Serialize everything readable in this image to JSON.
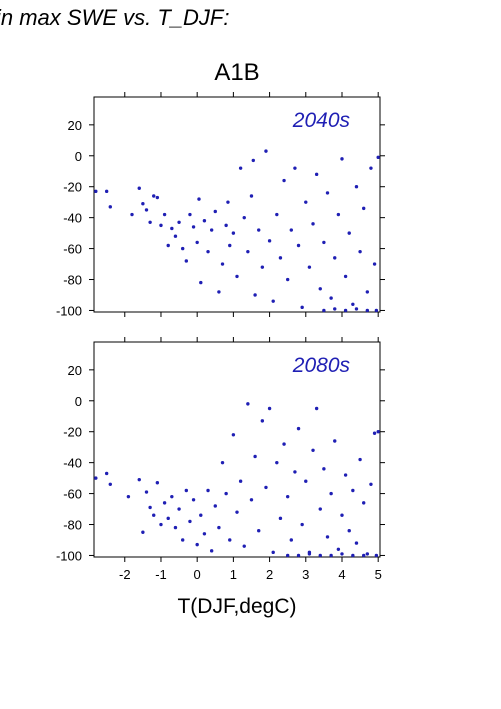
{
  "figure": {
    "heading": "in max SWE vs. T_DJF:",
    "scenario": "A1B",
    "xlabel": "T(DJF,degC)",
    "marker_color": "#1f1fb4"
  },
  "chart_data": [
    {
      "type": "scatter",
      "label": "2040s",
      "xlim": [
        -2.85,
        5.05
      ],
      "ylim": [
        -101,
        38
      ],
      "yticks": [
        20,
        0,
        -20,
        -40,
        -60,
        -80,
        -100
      ],
      "xticks": [
        -2,
        -1,
        0,
        1,
        2,
        3,
        4,
        5
      ],
      "grid": false,
      "points": [
        [
          -2.8,
          -23
        ],
        [
          -2.5,
          -23
        ],
        [
          -2.4,
          -33
        ],
        [
          -1.8,
          -38
        ],
        [
          -1.6,
          -21
        ],
        [
          -1.5,
          -31
        ],
        [
          -1.4,
          -35
        ],
        [
          -1.3,
          -43
        ],
        [
          -1.2,
          -26
        ],
        [
          -1.1,
          -27
        ],
        [
          -1.0,
          -45
        ],
        [
          -0.9,
          -38
        ],
        [
          -0.8,
          -58
        ],
        [
          -0.7,
          -47
        ],
        [
          -0.6,
          -52
        ],
        [
          -0.5,
          -43
        ],
        [
          -0.4,
          -60
        ],
        [
          -0.3,
          -68
        ],
        [
          -0.2,
          -38
        ],
        [
          -0.1,
          -46
        ],
        [
          0.0,
          -56
        ],
        [
          0.05,
          -28
        ],
        [
          0.1,
          -82
        ],
        [
          0.2,
          -42
        ],
        [
          0.3,
          -62
        ],
        [
          0.4,
          -48
        ],
        [
          0.5,
          -36
        ],
        [
          0.6,
          -88
        ],
        [
          0.7,
          -70
        ],
        [
          0.8,
          -45
        ],
        [
          0.85,
          -30
        ],
        [
          0.9,
          -58
        ],
        [
          1.0,
          -50
        ],
        [
          1.1,
          -78
        ],
        [
          1.2,
          -8
        ],
        [
          1.3,
          -40
        ],
        [
          1.4,
          -62
        ],
        [
          1.5,
          -26
        ],
        [
          1.55,
          -3
        ],
        [
          1.6,
          -90
        ],
        [
          1.7,
          -48
        ],
        [
          1.8,
          -72
        ],
        [
          1.9,
          3
        ],
        [
          2.0,
          -55
        ],
        [
          2.1,
          -94
        ],
        [
          2.2,
          -38
        ],
        [
          2.3,
          -66
        ],
        [
          2.4,
          -16
        ],
        [
          2.5,
          -80
        ],
        [
          2.6,
          -48
        ],
        [
          2.7,
          -8
        ],
        [
          2.8,
          -58
        ],
        [
          2.9,
          -98
        ],
        [
          3.0,
          -30
        ],
        [
          3.1,
          -72
        ],
        [
          3.2,
          -44
        ],
        [
          3.3,
          -12
        ],
        [
          3.4,
          -86
        ],
        [
          3.5,
          -56
        ],
        [
          3.6,
          -24
        ],
        [
          3.7,
          -92
        ],
        [
          3.8,
          -66
        ],
        [
          3.9,
          -38
        ],
        [
          4.0,
          -2
        ],
        [
          4.1,
          -78
        ],
        [
          4.2,
          -50
        ],
        [
          4.3,
          -96
        ],
        [
          4.4,
          -20
        ],
        [
          4.5,
          -62
        ],
        [
          4.6,
          -34
        ],
        [
          4.7,
          -88
        ],
        [
          4.8,
          -8
        ],
        [
          4.9,
          -70
        ],
        [
          5.0,
          -1
        ],
        [
          4.95,
          -100
        ],
        [
          4.7,
          -100
        ],
        [
          4.4,
          -99
        ],
        [
          4.1,
          -100
        ],
        [
          3.8,
          -99
        ],
        [
          3.5,
          -100
        ]
      ]
    },
    {
      "type": "scatter",
      "label": "2080s",
      "xlim": [
        -2.85,
        5.05
      ],
      "ylim": [
        -101,
        38
      ],
      "yticks": [
        20,
        0,
        -20,
        -40,
        -60,
        -80,
        -100
      ],
      "xticks": [
        -2,
        -1,
        0,
        1,
        2,
        3,
        4,
        5
      ],
      "grid": false,
      "points": [
        [
          -2.8,
          -50
        ],
        [
          -2.5,
          -47
        ],
        [
          -2.4,
          -54
        ],
        [
          -1.9,
          -62
        ],
        [
          -1.6,
          -51
        ],
        [
          -1.5,
          -85
        ],
        [
          -1.4,
          -59
        ],
        [
          -1.3,
          -69
        ],
        [
          -1.2,
          -74
        ],
        [
          -1.1,
          -53
        ],
        [
          -1.0,
          -80
        ],
        [
          -0.9,
          -66
        ],
        [
          -0.8,
          -76
        ],
        [
          -0.7,
          -62
        ],
        [
          -0.6,
          -82
        ],
        [
          -0.5,
          -70
        ],
        [
          -0.4,
          -90
        ],
        [
          -0.3,
          -58
        ],
        [
          -0.2,
          -78
        ],
        [
          -0.1,
          -64
        ],
        [
          0.0,
          -93
        ],
        [
          0.1,
          -74
        ],
        [
          0.2,
          -86
        ],
        [
          0.3,
          -58
        ],
        [
          0.4,
          -97
        ],
        [
          0.5,
          -68
        ],
        [
          0.6,
          -82
        ],
        [
          0.7,
          -40
        ],
        [
          0.8,
          -60
        ],
        [
          0.9,
          -90
        ],
        [
          1.0,
          -22
        ],
        [
          1.1,
          -72
        ],
        [
          1.2,
          -52
        ],
        [
          1.3,
          -94
        ],
        [
          1.4,
          -2
        ],
        [
          1.5,
          -64
        ],
        [
          1.6,
          -36
        ],
        [
          1.7,
          -84
        ],
        [
          1.8,
          -13
        ],
        [
          1.9,
          -56
        ],
        [
          2.0,
          -5
        ],
        [
          2.1,
          -98
        ],
        [
          2.2,
          -40
        ],
        [
          2.3,
          -76
        ],
        [
          2.4,
          -28
        ],
        [
          2.5,
          -62
        ],
        [
          2.6,
          -90
        ],
        [
          2.7,
          -46
        ],
        [
          2.8,
          -18
        ],
        [
          2.9,
          -80
        ],
        [
          3.0,
          -52
        ],
        [
          3.1,
          -98
        ],
        [
          3.2,
          -32
        ],
        [
          3.3,
          -5
        ],
        [
          3.4,
          -70
        ],
        [
          3.5,
          -44
        ],
        [
          3.6,
          -88
        ],
        [
          3.7,
          -60
        ],
        [
          3.8,
          -26
        ],
        [
          3.9,
          -96
        ],
        [
          4.0,
          -74
        ],
        [
          4.1,
          -48
        ],
        [
          4.2,
          -84
        ],
        [
          4.3,
          -58
        ],
        [
          4.4,
          -92
        ],
        [
          4.5,
          -38
        ],
        [
          4.6,
          -66
        ],
        [
          4.7,
          -99
        ],
        [
          4.8,
          -54
        ],
        [
          4.9,
          -21
        ],
        [
          5.0,
          -20
        ],
        [
          4.95,
          -100
        ],
        [
          4.6,
          -100
        ],
        [
          4.3,
          -100
        ],
        [
          4.0,
          -99
        ],
        [
          3.7,
          -100
        ],
        [
          3.4,
          -100
        ],
        [
          3.1,
          -99
        ],
        [
          2.8,
          -100
        ],
        [
          2.5,
          -100
        ]
      ]
    }
  ]
}
